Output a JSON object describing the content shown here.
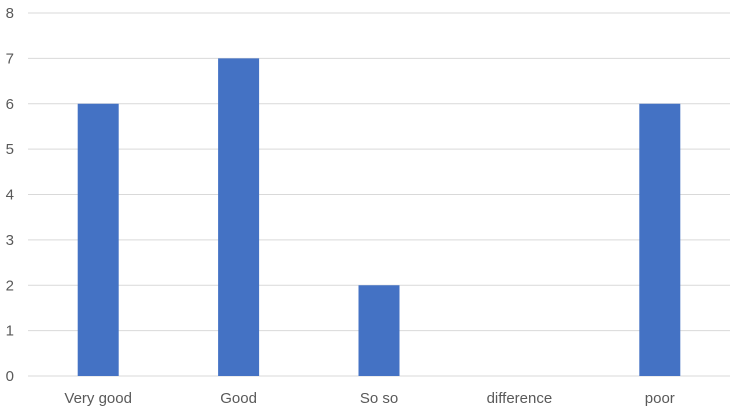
{
  "chart_data": {
    "type": "bar",
    "categories": [
      "Very good",
      "Good",
      "So so",
      "difference",
      "poor"
    ],
    "values": [
      6,
      7,
      2,
      0,
      6
    ],
    "title": "",
    "xlabel": "",
    "ylabel": "",
    "ylim": [
      0,
      8
    ],
    "yticks": [
      "0",
      "1",
      "2",
      "3",
      "4",
      "5",
      "6",
      "7",
      "8"
    ],
    "grid": true,
    "legend": "none",
    "colors": {
      "bar": "#4472c4",
      "grid": "#d9d9d9",
      "text": "#595959"
    }
  }
}
